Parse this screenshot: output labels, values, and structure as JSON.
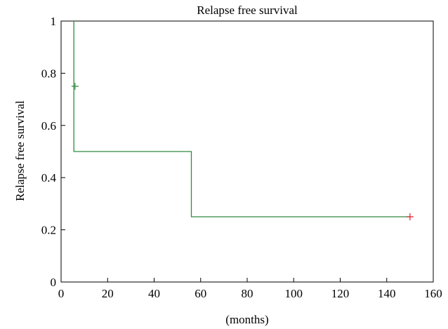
{
  "chart_data": {
    "type": "line",
    "title": "Relapse free survival",
    "xlabel": "(months)",
    "ylabel": "Relapse free survival",
    "xlim": [
      0,
      160
    ],
    "ylim": [
      0,
      1
    ],
    "x_ticks": [
      0,
      20,
      40,
      60,
      80,
      100,
      120,
      140,
      160
    ],
    "y_ticks": [
      0,
      0.2,
      0.4,
      0.6,
      0.8,
      1
    ],
    "y_tick_labels": [
      "0",
      "0.2",
      "0.4",
      "0.6",
      "0.8",
      "1"
    ],
    "grid": false,
    "step": true,
    "series": [
      {
        "color": "#2e8b3e",
        "x": [
          5.5,
          5.5,
          56,
          56,
          150
        ],
        "y": [
          1,
          0.5,
          0.5,
          0.25,
          0.25
        ]
      }
    ],
    "censor_marks": [
      {
        "x": 6,
        "y": 0.75,
        "color": "#2e8b3e"
      },
      {
        "x": 150,
        "y": 0.25,
        "color": "#e0202a"
      }
    ]
  }
}
